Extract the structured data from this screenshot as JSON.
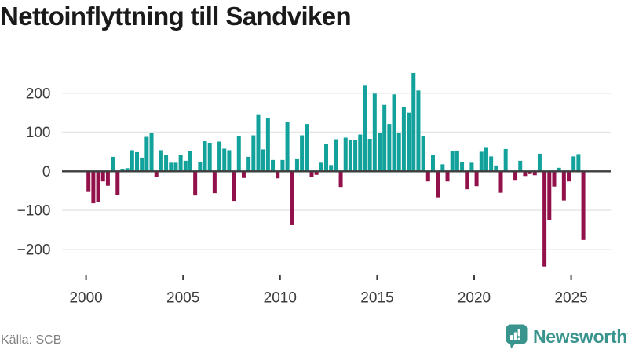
{
  "title": "Nettoinflyttning till Sandviken",
  "footer": {
    "source": "Källa: SCB",
    "brand": "Newsworthy"
  },
  "colors": {
    "positive": "#12a29b",
    "negative": "#93114a",
    "axis": "#3d3d3d",
    "grid": "#e6e6e6",
    "label": "#3c3c3c",
    "brand_teal": "#3a948e"
  },
  "chart_data": {
    "type": "bar",
    "title": "Nettoinflyttning till Sandviken",
    "xlabel": "",
    "ylabel": "",
    "frequency": "quarterly",
    "grid": "horizontal",
    "legend": "none",
    "ylim": [
      -260,
      265
    ],
    "y_ticks": [
      200,
      100,
      0,
      -100,
      -200
    ],
    "x_tick_labels": [
      "2000",
      "2005",
      "2010",
      "2015",
      "2020",
      "2025"
    ],
    "categories": [
      "2000 Q1",
      "2000 Q2",
      "2000 Q3",
      "2000 Q4",
      "2001 Q1",
      "2001 Q2",
      "2001 Q3",
      "2001 Q4",
      "2002 Q1",
      "2002 Q2",
      "2002 Q3",
      "2002 Q4",
      "2003 Q1",
      "2003 Q2",
      "2003 Q3",
      "2003 Q4",
      "2004 Q1",
      "2004 Q2",
      "2004 Q3",
      "2004 Q4",
      "2005 Q1",
      "2005 Q2",
      "2005 Q3",
      "2005 Q4",
      "2006 Q1",
      "2006 Q2",
      "2006 Q3",
      "2006 Q4",
      "2007 Q1",
      "2007 Q2",
      "2007 Q3",
      "2007 Q4",
      "2008 Q1",
      "2008 Q2",
      "2008 Q3",
      "2008 Q4",
      "2009 Q1",
      "2009 Q2",
      "2009 Q3",
      "2009 Q4",
      "2010 Q1",
      "2010 Q2",
      "2010 Q3",
      "2010 Q4",
      "2011 Q1",
      "2011 Q2",
      "2011 Q3",
      "2011 Q4",
      "2012 Q1",
      "2012 Q2",
      "2012 Q3",
      "2012 Q4",
      "2013 Q1",
      "2013 Q2",
      "2013 Q3",
      "2013 Q4",
      "2014 Q1",
      "2014 Q2",
      "2014 Q3",
      "2014 Q4",
      "2015 Q1",
      "2015 Q2",
      "2015 Q3",
      "2015 Q4",
      "2016 Q1",
      "2016 Q2",
      "2016 Q3",
      "2016 Q4",
      "2017 Q1",
      "2017 Q2",
      "2017 Q3",
      "2017 Q4",
      "2018 Q1",
      "2018 Q2",
      "2018 Q3",
      "2018 Q4",
      "2019 Q1",
      "2019 Q2",
      "2019 Q3",
      "2019 Q4",
      "2020 Q1",
      "2020 Q2",
      "2020 Q3",
      "2020 Q4",
      "2021 Q1",
      "2021 Q2",
      "2021 Q3",
      "2021 Q4",
      "2022 Q1",
      "2022 Q2",
      "2022 Q3",
      "2022 Q4",
      "2023 Q1",
      "2023 Q2",
      "2023 Q3",
      "2023 Q4",
      "2024 Q1",
      "2024 Q2",
      "2024 Q3",
      "2024 Q4",
      "2025 Q1",
      "2025 Q2",
      "2025 Q3"
    ],
    "values": [
      -53,
      -82,
      -78,
      -26,
      -37,
      37,
      -60,
      6,
      8,
      54,
      49,
      35,
      88,
      98,
      -14,
      54,
      42,
      22,
      22,
      41,
      27,
      52,
      -62,
      24,
      77,
      73,
      -56,
      76,
      58,
      54,
      -76,
      90,
      -17,
      37,
      92,
      146,
      56,
      137,
      29,
      -18,
      29,
      126,
      -138,
      31,
      92,
      121,
      -15,
      -9,
      22,
      71,
      16,
      82,
      -42,
      86,
      80,
      80,
      94,
      221,
      83,
      199,
      99,
      170,
      121,
      197,
      99,
      165,
      150,
      252,
      207,
      90,
      -26,
      41,
      -67,
      18,
      -26,
      51,
      53,
      23,
      -46,
      22,
      -38,
      50,
      60,
      38,
      15,
      -55,
      57,
      0,
      -24,
      27,
      -12,
      -7,
      -10,
      45,
      -244,
      -126,
      -39,
      9,
      -75,
      -26,
      38,
      44,
      -176
    ]
  }
}
